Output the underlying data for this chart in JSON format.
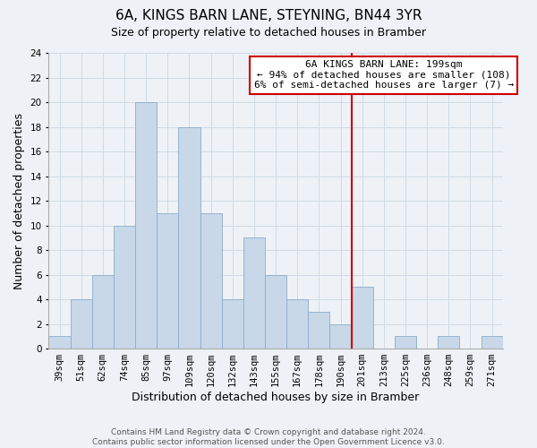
{
  "title": "6A, KINGS BARN LANE, STEYNING, BN44 3YR",
  "subtitle": "Size of property relative to detached houses in Bramber",
  "xlabel": "Distribution of detached houses by size in Bramber",
  "ylabel": "Number of detached properties",
  "footer_line1": "Contains HM Land Registry data © Crown copyright and database right 2024.",
  "footer_line2": "Contains public sector information licensed under the Open Government Licence v3.0.",
  "bin_labels": [
    "39sqm",
    "51sqm",
    "62sqm",
    "74sqm",
    "85sqm",
    "97sqm",
    "109sqm",
    "120sqm",
    "132sqm",
    "143sqm",
    "155sqm",
    "167sqm",
    "178sqm",
    "190sqm",
    "201sqm",
    "213sqm",
    "225sqm",
    "236sqm",
    "248sqm",
    "259sqm",
    "271sqm"
  ],
  "bar_heights": [
    1,
    4,
    6,
    10,
    20,
    11,
    18,
    11,
    4,
    9,
    6,
    4,
    3,
    2,
    5,
    0,
    1,
    0,
    1,
    0,
    1
  ],
  "bar_color": "#c8d8e8",
  "bar_edgecolor": "#8aaccc",
  "ylim": [
    0,
    24
  ],
  "yticks": [
    0,
    2,
    4,
    6,
    8,
    10,
    12,
    14,
    16,
    18,
    20,
    22,
    24
  ],
  "grid_color": "#d0dae4",
  "vline_x_idx": 14,
  "vline_color": "#cc0000",
  "annotation_title": "6A KINGS BARN LANE: 199sqm",
  "annotation_line1": "← 94% of detached houses are smaller (108)",
  "annotation_line2": "6% of semi-detached houses are larger (7) →",
  "annotation_box_facecolor": "#ffffff",
  "annotation_box_edgecolor": "#cc0000",
  "title_fontsize": 11,
  "subtitle_fontsize": 9,
  "axis_label_fontsize": 9,
  "tick_fontsize": 7.5,
  "annotation_fontsize": 8,
  "footer_fontsize": 6.5,
  "background_color": "#eef2f6"
}
